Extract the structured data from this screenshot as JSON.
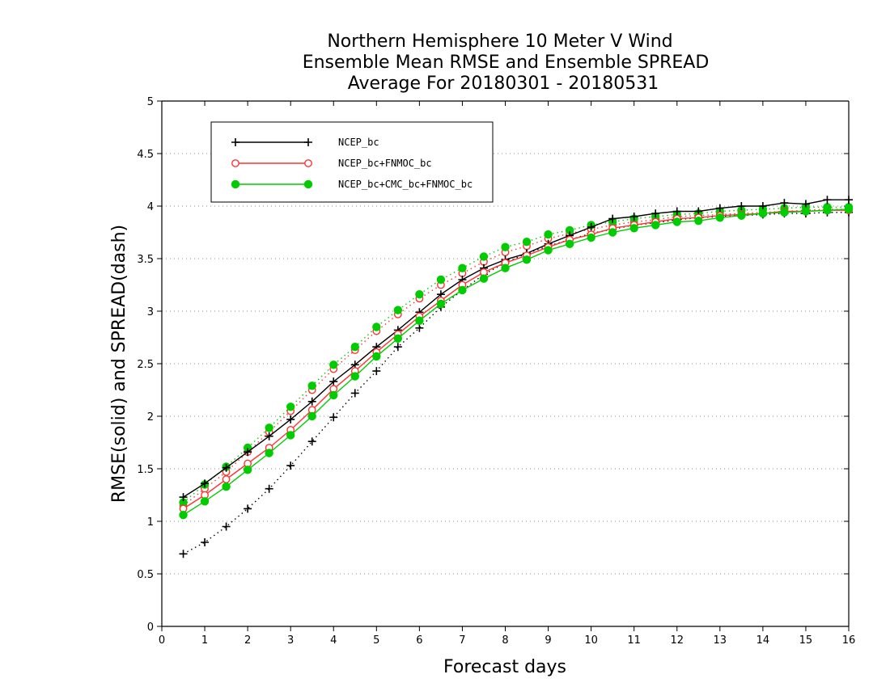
{
  "chart_data": {
    "type": "line",
    "title_lines": [
      "Northern Hemisphere 10 Meter V Wind",
      "Ensemble Mean RMSE and Ensemble SPREAD",
      "Average For 20180301 - 20180531"
    ],
    "xlabel": "Forecast days",
    "ylabel": "RMSE(solid) and SPREAD(dash)",
    "xlim": [
      0,
      16
    ],
    "ylim": [
      0,
      5
    ],
    "x_ticks": [
      0,
      1,
      2,
      3,
      4,
      5,
      6,
      7,
      8,
      9,
      10,
      11,
      12,
      13,
      14,
      15,
      16
    ],
    "y_ticks": [
      0,
      0.5,
      1,
      1.5,
      2,
      2.5,
      3,
      3.5,
      4,
      4.5,
      5
    ],
    "y_tick_labels": [
      "0",
      "0.5",
      "1",
      "1.5",
      "2",
      "2.5",
      "3",
      "3.5",
      "4",
      "4.5",
      "5"
    ],
    "grid": "horizontal dotted",
    "legend_position": "top-left",
    "x": [
      0.5,
      1,
      1.5,
      2,
      2.5,
      3,
      3.5,
      4,
      4.5,
      5,
      5.5,
      6,
      6.5,
      7,
      7.5,
      8,
      8.5,
      9,
      9.5,
      10,
      10.5,
      11,
      11.5,
      12,
      12.5,
      13,
      13.5,
      14,
      14.5,
      15,
      15.5,
      16
    ],
    "series": [
      {
        "name": "NCEP_bc",
        "color": "#000000",
        "marker": "plus",
        "rmse": [
          1.23,
          1.36,
          1.51,
          1.66,
          1.81,
          1.97,
          2.14,
          2.33,
          2.49,
          2.66,
          2.82,
          2.99,
          3.16,
          3.3,
          3.41,
          3.49,
          3.55,
          3.64,
          3.72,
          3.8,
          3.88,
          3.9,
          3.93,
          3.95,
          3.95,
          3.98,
          4.0,
          4.0,
          4.03,
          4.02,
          4.06,
          4.06
        ],
        "spread": [
          0.69,
          0.8,
          0.95,
          1.12,
          1.31,
          1.53,
          1.76,
          1.99,
          2.22,
          2.43,
          2.66,
          2.84,
          3.04,
          3.2,
          3.35,
          3.46,
          3.55,
          3.62,
          3.68,
          3.74,
          3.78,
          3.82,
          3.84,
          3.87,
          3.89,
          3.9,
          3.91,
          3.92,
          3.93,
          3.93,
          3.94,
          3.94
        ]
      },
      {
        "name": "NCEP_bc+FNMOC_bc",
        "color": "#ff3333",
        "marker": "open-circle",
        "rmse": [
          1.12,
          1.25,
          1.4,
          1.55,
          1.7,
          1.87,
          2.06,
          2.26,
          2.43,
          2.61,
          2.78,
          2.95,
          3.1,
          3.25,
          3.37,
          3.46,
          3.53,
          3.61,
          3.68,
          3.73,
          3.79,
          3.82,
          3.85,
          3.88,
          3.89,
          3.91,
          3.92,
          3.93,
          3.95,
          3.95,
          3.96,
          3.96
        ],
        "spread": [
          1.15,
          1.31,
          1.47,
          1.66,
          1.85,
          2.05,
          2.25,
          2.45,
          2.63,
          2.81,
          2.97,
          3.12,
          3.25,
          3.36,
          3.47,
          3.56,
          3.62,
          3.69,
          3.74,
          3.78,
          3.82,
          3.85,
          3.87,
          3.9,
          3.91,
          3.92,
          3.93,
          3.94,
          3.95,
          3.96,
          3.97,
          3.97
        ]
      },
      {
        "name": "NCEP_bc+CMC_bc+FNMOC_bc",
        "color": "#00cc00",
        "marker": "filled-circle",
        "rmse": [
          1.06,
          1.19,
          1.33,
          1.49,
          1.65,
          1.82,
          2.0,
          2.2,
          2.38,
          2.57,
          2.74,
          2.91,
          3.07,
          3.2,
          3.31,
          3.41,
          3.49,
          3.58,
          3.64,
          3.7,
          3.75,
          3.79,
          3.82,
          3.85,
          3.86,
          3.89,
          3.91,
          3.93,
          3.94,
          3.95,
          3.96,
          3.97
        ],
        "spread": [
          1.18,
          1.35,
          1.52,
          1.7,
          1.89,
          2.09,
          2.29,
          2.49,
          2.66,
          2.85,
          3.01,
          3.16,
          3.3,
          3.41,
          3.52,
          3.61,
          3.66,
          3.73,
          3.77,
          3.82,
          3.85,
          3.88,
          3.9,
          3.92,
          3.93,
          3.95,
          3.96,
          3.97,
          3.98,
          3.99,
          3.99,
          3.99
        ]
      }
    ]
  }
}
